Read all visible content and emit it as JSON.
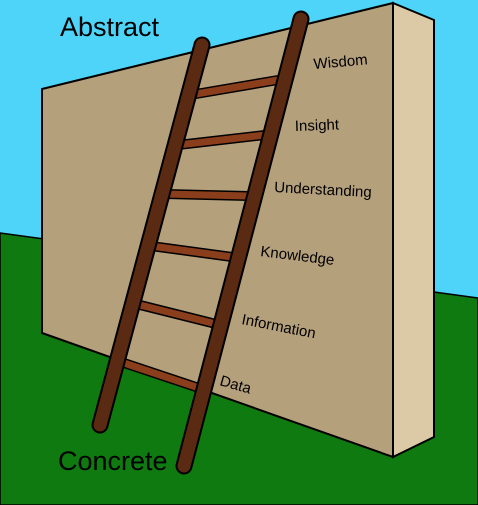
{
  "diagram": {
    "top_label": "Abstract",
    "bottom_label": "Concrete",
    "rungs": [
      {
        "label": "Wisdom"
      },
      {
        "label": "Insight"
      },
      {
        "label": "Understanding"
      },
      {
        "label": "Knowledge"
      },
      {
        "label": "Information"
      },
      {
        "label": "Data"
      }
    ]
  },
  "colors": {
    "sky": "#4dd4f8",
    "grass": "#0f7a0f",
    "wall_front": "#b5a07c",
    "wall_side": "#dccaa6",
    "ladder_rail": "#5a2a12",
    "ladder_rung": "#8a3e1c",
    "outline": "#000000"
  }
}
